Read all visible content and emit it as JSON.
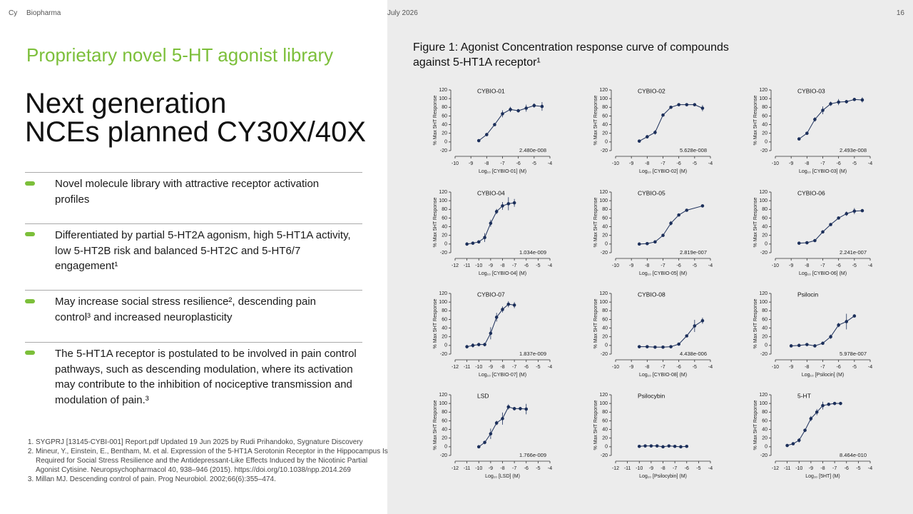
{
  "header": {
    "logo": "Cy",
    "brand": "Biopharma",
    "date": "July 2026",
    "page": "16"
  },
  "left": {
    "kicker": "Proprietary novel 5-HT agonist library",
    "title_lines": [
      "Next generation",
      "NCEs planned CY30X/40X"
    ],
    "bullets": [
      "Novel molecule library with attractive receptor activation profiles",
      "Differentiated by partial 5-HT2A agonism, high 5-HT1A activity, low 5-HT2B risk and balanced 5-HT2C and 5-HT6/7 engagement¹",
      "May increase social stress resilience², descending pain control³ and increased neuroplasticity",
      "The 5-HT1A receptor is postulated to be involved in pain control pathways, such as descending modulation, where its activation may contribute to the inhibition of nociceptive transmission and modulation of pain.³"
    ],
    "footnotes": [
      "SYGPRJ [13145-CYBI-001] Report.pdf Updated 19 Jun 2025 by Rudi Prihandoko, Sygnature Discovery",
      "Mineur, Y., Einstein, E., Bentham, M. et al. Expression of the 5-HT1A Serotonin Receptor in the Hippocampus Is Required for Social Stress Resilience and the Antidepressant-Like Effects Induced by the Nicotinic Partial Agonist Cytisine. Neuropsychopharmacol 40, 938–946 (2015). https://doi.org/10.1038/npp.2014.269",
      "Millan MJ. Descending control of pain. Prog Neurobiol. 2002;66(6):355–474."
    ]
  },
  "figure_title_lines": [
    "Figure 1: Agonist Concentration response curve of compounds",
    "against 5-HT1A receptor¹"
  ],
  "chart_data": [
    {
      "type": "scatter",
      "title": "CYBIO-01",
      "xlabel": "Log₁₀ [CYBIO-01] (M)",
      "ylabel": "% Max 5HT Response",
      "annotation": "2.480e-008",
      "color": "#1c2f5a",
      "x": [
        -8.5,
        -8,
        -7.5,
        -7,
        -6.5,
        -6,
        -5.5,
        -5,
        -4.5
      ],
      "values": [
        3,
        17,
        40,
        65,
        75,
        72,
        78,
        84,
        82
      ],
      "errors": [
        2,
        4,
        3,
        8,
        6,
        4,
        8,
        5,
        10
      ],
      "xlim": [
        -10,
        -4
      ],
      "xticks": [
        -10,
        -9,
        -8,
        -7,
        -6,
        -5,
        -4
      ],
      "ylim": [
        -20,
        120
      ],
      "yticks": [
        -20,
        0,
        20,
        40,
        60,
        80,
        100,
        120
      ]
    },
    {
      "type": "scatter",
      "title": "CYBIO-02",
      "xlabel": "Log₁₀ [CYBIO-02] (M)",
      "ylabel": "% Max 5HT Response",
      "annotation": "5.628e-008",
      "color": "#1c2f5a",
      "x": [
        -8.5,
        -8,
        -7.5,
        -7,
        -6.5,
        -6,
        -5.5,
        -5,
        -4.5
      ],
      "values": [
        2,
        12,
        22,
        62,
        80,
        86,
        86,
        86,
        78
      ],
      "errors": [
        2,
        4,
        5,
        3,
        3,
        2,
        2,
        2,
        7
      ],
      "xlim": [
        -10,
        -4
      ],
      "xticks": [
        -10,
        -9,
        -8,
        -7,
        -6,
        -5,
        -4
      ],
      "ylim": [
        -20,
        120
      ],
      "yticks": [
        -20,
        0,
        20,
        40,
        60,
        80,
        100,
        120
      ]
    },
    {
      "type": "scatter",
      "title": "CYBIO-03",
      "xlabel": "Log₁₀ [CYBIO-03] (M)",
      "ylabel": "% Max 5HT Response",
      "annotation": "2.493e-008",
      "color": "#1c2f5a",
      "x": [
        -8.5,
        -8,
        -7.5,
        -7,
        -6.5,
        -6,
        -5.5,
        -5,
        -4.5
      ],
      "values": [
        7,
        20,
        52,
        73,
        88,
        92,
        93,
        98,
        97
      ],
      "errors": [
        2,
        3,
        5,
        9,
        5,
        7,
        4,
        3,
        6
      ],
      "xlim": [
        -10,
        -4
      ],
      "xticks": [
        -10,
        -9,
        -8,
        -7,
        -6,
        -5,
        -4
      ],
      "ylim": [
        -20,
        120
      ],
      "yticks": [
        -20,
        0,
        20,
        40,
        60,
        80,
        100,
        120
      ]
    },
    {
      "type": "scatter",
      "title": "CYBIO-04",
      "xlabel": "Log₁₀ [CYBIO-04] (M)",
      "ylabel": "% Max 5HT Response",
      "annotation": "1.034e-009",
      "color": "#1c2f5a",
      "x": [
        -11,
        -10.5,
        -10,
        -9.5,
        -9,
        -8.5,
        -8,
        -7.5,
        -7
      ],
      "values": [
        0,
        2,
        5,
        15,
        48,
        75,
        88,
        93,
        95
      ],
      "errors": [
        4,
        3,
        3,
        10,
        8,
        6,
        9,
        15,
        9
      ],
      "xlim": [
        -12,
        -4
      ],
      "xticks": [
        -12,
        -11,
        -10,
        -9,
        -8,
        -7,
        -6,
        -5,
        -4
      ],
      "ylim": [
        -20,
        120
      ],
      "yticks": [
        -20,
        0,
        20,
        40,
        60,
        80,
        100,
        120
      ]
    },
    {
      "type": "scatter",
      "title": "CYBIO-05",
      "xlabel": "Log₁₀ [CYBIO-05] (M)",
      "ylabel": "% Max 5HT Response",
      "annotation": "2.819e-007",
      "color": "#1c2f5a",
      "x": [
        -8.5,
        -8,
        -7.5,
        -7,
        -6.5,
        -6,
        -5.5,
        -4.5
      ],
      "values": [
        0,
        1,
        5,
        20,
        48,
        67,
        78,
        88
      ],
      "errors": [
        1,
        1,
        2,
        2,
        5,
        3,
        2,
        3
      ],
      "xlim": [
        -10,
        -4
      ],
      "xticks": [
        -10,
        -9,
        -8,
        -7,
        -6,
        -5,
        -4
      ],
      "ylim": [
        -20,
        120
      ],
      "yticks": [
        -20,
        0,
        20,
        40,
        60,
        80,
        100,
        120
      ]
    },
    {
      "type": "scatter",
      "title": "CYBIO-06",
      "xlabel": "Log₁₀ [CYBIO-06] (M)",
      "ylabel": "% Max 5HT Response",
      "annotation": "2.241e-007",
      "color": "#1c2f5a",
      "x": [
        -8.5,
        -8,
        -7.5,
        -7,
        -6.5,
        -6,
        -5.5,
        -5,
        -4.5
      ],
      "values": [
        2,
        3,
        8,
        28,
        45,
        60,
        70,
        76,
        77
      ],
      "errors": [
        1,
        1,
        2,
        2,
        3,
        3,
        5,
        7,
        2
      ],
      "xlim": [
        -10,
        -4
      ],
      "xticks": [
        -10,
        -9,
        -8,
        -7,
        -6,
        -5,
        -4
      ],
      "ylim": [
        -20,
        120
      ],
      "yticks": [
        -20,
        0,
        20,
        40,
        60,
        80,
        100,
        120
      ]
    },
    {
      "type": "scatter",
      "title": "CYBIO-07",
      "xlabel": "Log₁₀ [CYBIO-07] (M)",
      "ylabel": "% Max 5HT Response",
      "annotation": "1.837e-009",
      "color": "#1c2f5a",
      "x": [
        -11,
        -10.5,
        -10,
        -9.5,
        -9,
        -8.5,
        -8,
        -7.5,
        -7
      ],
      "values": [
        -3,
        0,
        2,
        2,
        28,
        65,
        83,
        95,
        93
      ],
      "errors": [
        4,
        5,
        4,
        4,
        14,
        10,
        7,
        7,
        7
      ],
      "xlim": [
        -12,
        -4
      ],
      "xticks": [
        -12,
        -11,
        -10,
        -9,
        -8,
        -7,
        -6,
        -5,
        -4
      ],
      "ylim": [
        -20,
        120
      ],
      "yticks": [
        -20,
        0,
        20,
        40,
        60,
        80,
        100,
        120
      ]
    },
    {
      "type": "scatter",
      "title": "CYBIO-08",
      "xlabel": "Log₁₀ [CYBIO-08] (M)",
      "ylabel": "% Max 5HT Response",
      "annotation": "4.438e-006",
      "color": "#1c2f5a",
      "x": [
        -8.5,
        -8,
        -7.5,
        -7,
        -6.5,
        -6,
        -5.5,
        -5,
        -4.5
      ],
      "values": [
        -3,
        -3,
        -4,
        -4,
        -3,
        3,
        22,
        45,
        57
      ],
      "errors": [
        1,
        1,
        1,
        1,
        1,
        2,
        3,
        14,
        7
      ],
      "xlim": [
        -10,
        -4
      ],
      "xticks": [
        -10,
        -9,
        -8,
        -7,
        -6,
        -5,
        -4
      ],
      "ylim": [
        -20,
        120
      ],
      "yticks": [
        -20,
        0,
        20,
        40,
        60,
        80,
        100,
        120
      ]
    },
    {
      "type": "scatter",
      "title": "Psilocin",
      "xlabel": "Log₁₀ [Psilocin] (M)",
      "ylabel": "% Max 5HT Response",
      "annotation": "5.978e-007",
      "color": "#1c2f5a",
      "x": [
        -9,
        -8.5,
        -8,
        -7.5,
        -7,
        -6.5,
        -6,
        -5.5,
        -5
      ],
      "values": [
        -1,
        0,
        2,
        -1,
        5,
        20,
        47,
        55,
        68
      ],
      "errors": [
        1,
        1,
        1,
        1,
        2,
        5,
        5,
        18,
        2
      ],
      "xlim": [
        -10,
        -4
      ],
      "xticks": [
        -10,
        -9,
        -8,
        -7,
        -6,
        -5,
        -4
      ],
      "ylim": [
        -20,
        120
      ],
      "yticks": [
        -20,
        0,
        20,
        40,
        60,
        80,
        100,
        120
      ]
    },
    {
      "type": "scatter",
      "title": "LSD",
      "xlabel": "Log₁₀ [LSD] (M)",
      "ylabel": "% Max 5HT Response",
      "annotation": "1.766e-009",
      "color": "#1c2f5a",
      "x": [
        -10,
        -9.5,
        -9,
        -8.5,
        -8,
        -7.5,
        -7,
        -6.5,
        -6
      ],
      "values": [
        0,
        10,
        30,
        55,
        65,
        92,
        88,
        88,
        87
      ],
      "errors": [
        2,
        4,
        12,
        5,
        14,
        6,
        4,
        4,
        12
      ],
      "xlim": [
        -12,
        -4
      ],
      "xticks": [
        -12,
        -11,
        -10,
        -9,
        -8,
        -7,
        -6,
        -5,
        -4
      ],
      "ylim": [
        -20,
        120
      ],
      "yticks": [
        -20,
        0,
        20,
        40,
        60,
        80,
        100,
        120
      ]
    },
    {
      "type": "scatter",
      "title": "Psilocybin",
      "xlabel": "Log₁₀ [Psilocybin] (M)",
      "ylabel": "% Max 5HT Response",
      "annotation": null,
      "color": "#1c2f5a",
      "x": [
        -10,
        -9.5,
        -9,
        -8.5,
        -8,
        -7.5,
        -7,
        -6.5,
        -6
      ],
      "values": [
        1,
        2,
        2,
        2,
        0,
        2,
        1,
        0,
        1
      ],
      "errors": [
        1,
        1,
        1,
        1,
        1,
        1,
        1,
        1,
        1
      ],
      "xlim": [
        -12,
        -4
      ],
      "xticks": [
        -12,
        -11,
        -10,
        -9,
        -8,
        -7,
        -6,
        -5,
        -4
      ],
      "ylim": [
        -20,
        120
      ],
      "yticks": [
        -20,
        0,
        20,
        40,
        60,
        80,
        100,
        120
      ]
    },
    {
      "type": "scatter",
      "title": "5-HT",
      "xlabel": "Log₁₀ [5HT] (M)",
      "ylabel": "% Max 5HT Response",
      "annotation": "8.464e-010",
      "color": "#1c2f5a",
      "x": [
        -11,
        -10.5,
        -10,
        -9.5,
        -9,
        -8.5,
        -8,
        -7.5,
        -7,
        -6.5
      ],
      "values": [
        3,
        7,
        15,
        38,
        65,
        80,
        95,
        98,
        100,
        100
      ],
      "errors": [
        1,
        2,
        5,
        4,
        6,
        7,
        9,
        3,
        2,
        2
      ],
      "xlim": [
        -12,
        -4
      ],
      "xticks": [
        -12,
        -11,
        -10,
        -9,
        -8,
        -7,
        -6,
        -5,
        -4
      ],
      "ylim": [
        -20,
        120
      ],
      "yticks": [
        -20,
        0,
        20,
        40,
        60,
        80,
        100,
        120
      ]
    }
  ]
}
